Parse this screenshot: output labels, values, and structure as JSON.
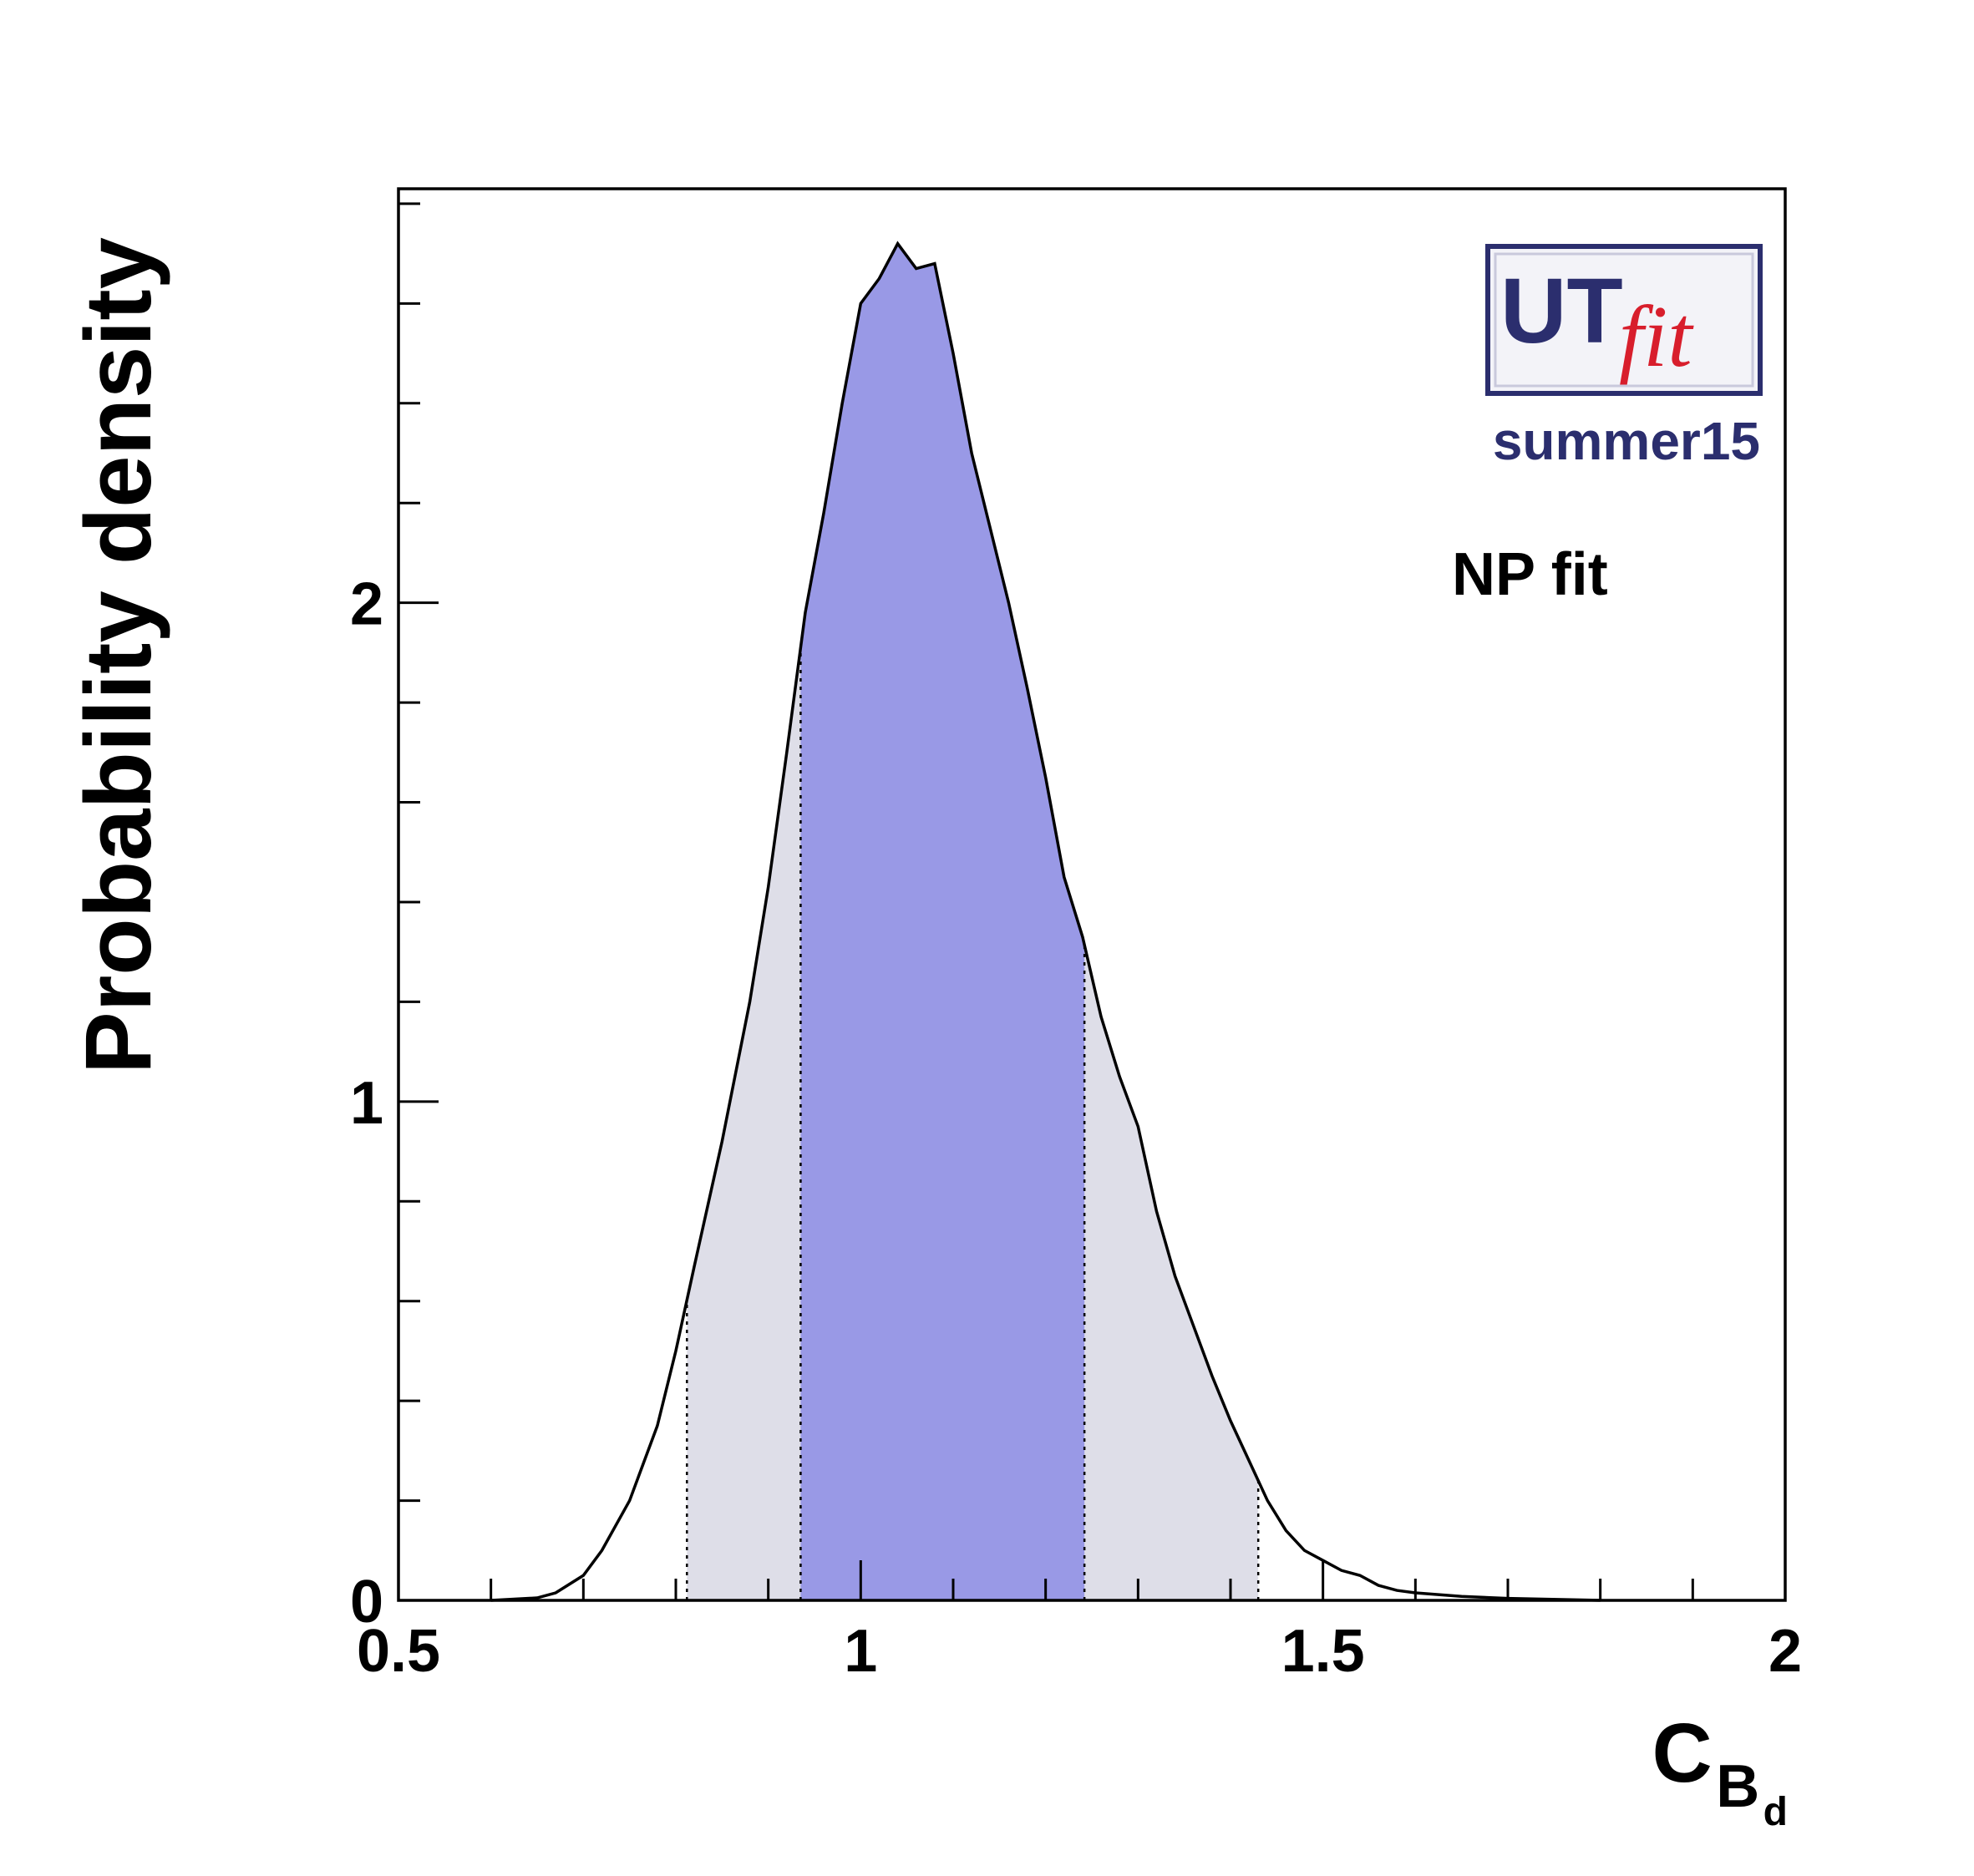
{
  "chart_data": {
    "type": "area",
    "title": "",
    "xlabel": "C",
    "xlabel_sub1": "B",
    "xlabel_sub2": "d",
    "ylabel": "Probability density",
    "xlim": [
      0.5,
      2.0
    ],
    "ylim": [
      0,
      2.83
    ],
    "x_ticks": [
      {
        "value": 0.5,
        "label": "0.5"
      },
      {
        "value": 1.0,
        "label": "1"
      },
      {
        "value": 1.5,
        "label": "1.5"
      },
      {
        "value": 2.0,
        "label": "2"
      }
    ],
    "y_ticks": [
      {
        "value": 0,
        "label": "0"
      },
      {
        "value": 1,
        "label": "1"
      },
      {
        "value": 2,
        "label": "2"
      }
    ],
    "grid": false,
    "legend": "none",
    "annotation": "NP fit",
    "logo": {
      "text_main": "UT",
      "text_italic": "fit",
      "caption": "summer15"
    },
    "intervals": {
      "inner": [
        0.935,
        1.242
      ],
      "outer": [
        0.812,
        1.43
      ]
    },
    "colors": {
      "inner_fill": "#9999e6",
      "outer_fill": "#dedee8",
      "curve": "#000000",
      "logo_blue": "#2b2e6e",
      "logo_red": "#d81e2c",
      "logo_border": "#2b2e6e",
      "logo_bg": "#f3f3f8"
    },
    "series": [
      {
        "x": [
          0.6,
          0.65,
          0.67,
          0.7,
          0.72,
          0.75,
          0.78,
          0.8,
          0.82,
          0.85,
          0.88,
          0.9,
          0.92,
          0.94,
          0.96,
          0.98,
          1.0,
          1.02,
          1.04,
          1.06,
          1.08,
          1.1,
          1.12,
          1.14,
          1.16,
          1.18,
          1.2,
          1.22,
          1.24,
          1.26,
          1.28,
          1.3,
          1.32,
          1.34,
          1.36,
          1.38,
          1.4,
          1.42,
          1.44,
          1.46,
          1.48,
          1.5,
          1.52,
          1.54,
          1.56,
          1.58,
          1.6,
          1.65,
          1.7,
          1.8
        ],
        "y": [
          0.0,
          0.005,
          0.015,
          0.05,
          0.1,
          0.2,
          0.35,
          0.5,
          0.67,
          0.92,
          1.2,
          1.43,
          1.7,
          1.98,
          2.18,
          2.4,
          2.6,
          2.65,
          2.72,
          2.67,
          2.68,
          2.5,
          2.3,
          2.15,
          2.0,
          1.83,
          1.65,
          1.45,
          1.33,
          1.17,
          1.05,
          0.95,
          0.78,
          0.65,
          0.55,
          0.45,
          0.36,
          0.28,
          0.2,
          0.14,
          0.1,
          0.08,
          0.06,
          0.05,
          0.03,
          0.02,
          0.015,
          0.008,
          0.004,
          0.0
        ]
      }
    ]
  }
}
